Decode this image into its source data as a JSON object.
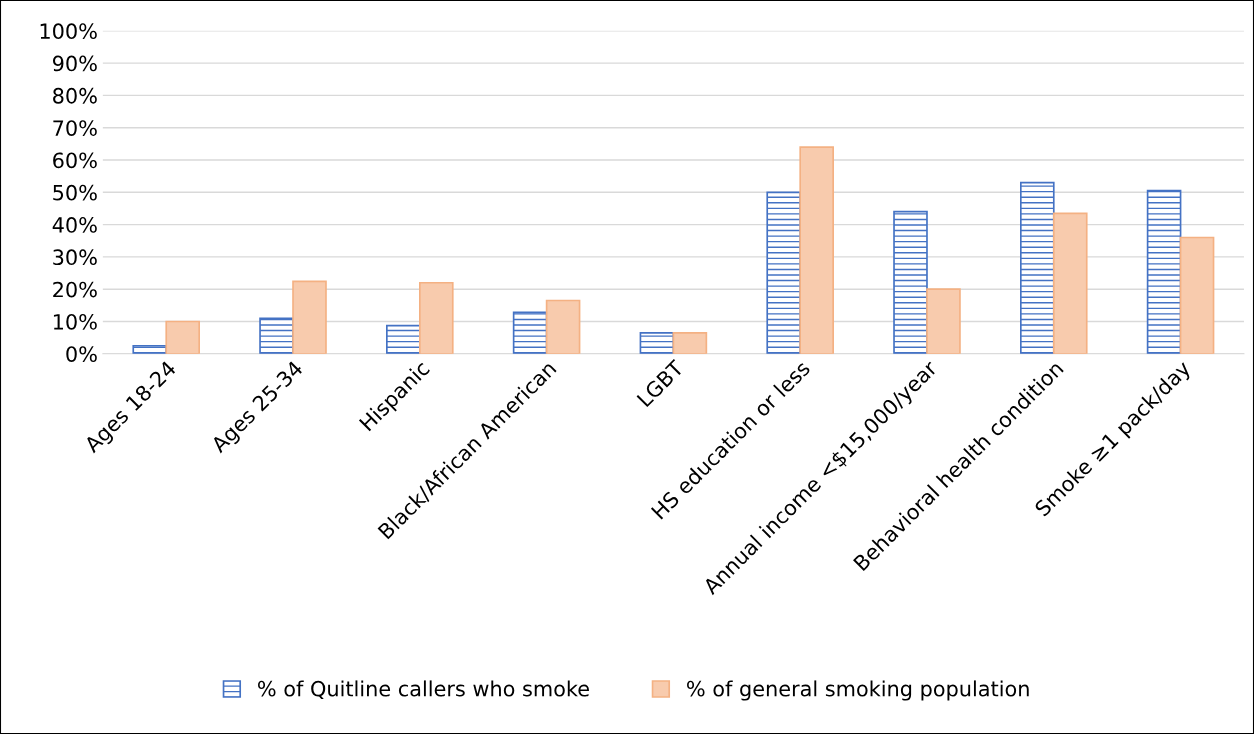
{
  "chart_data": {
    "type": "bar",
    "categories": [
      "Ages 18-24",
      "Ages 25-34",
      "Hispanic",
      "Black/African American",
      "LGBT",
      "HS education or less",
      "Annual income <$15,000/year",
      "Behavioral health condition",
      "Smoke ≥1 pack/day"
    ],
    "series": [
      {
        "name": "% of Quitline callers who smoke",
        "color": "#4472c4",
        "values": [
          2.5,
          11,
          8.7,
          12.8,
          6.5,
          50,
          44,
          53,
          50.5
        ]
      },
      {
        "name": "% of general smoking population",
        "color": "#f8cbad",
        "values": [
          10,
          22.4,
          22,
          16.5,
          6.5,
          64,
          20,
          43.5,
          36
        ]
      }
    ],
    "ylim": [
      0,
      100
    ],
    "yticks": [
      {
        "value": 0,
        "label": "0%"
      },
      {
        "value": 10,
        "label": "10%"
      },
      {
        "value": 20,
        "label": "20%"
      },
      {
        "value": 30,
        "label": "30%"
      },
      {
        "value": 40,
        "label": "40%"
      },
      {
        "value": 50,
        "label": "50%"
      },
      {
        "value": 60,
        "label": "60%"
      },
      {
        "value": 70,
        "label": "70%"
      },
      {
        "value": 80,
        "label": "80%"
      },
      {
        "value": 90,
        "label": "90%"
      },
      {
        "value": 100,
        "label": "100%"
      }
    ],
    "grid": "y",
    "legend": "bottom"
  }
}
